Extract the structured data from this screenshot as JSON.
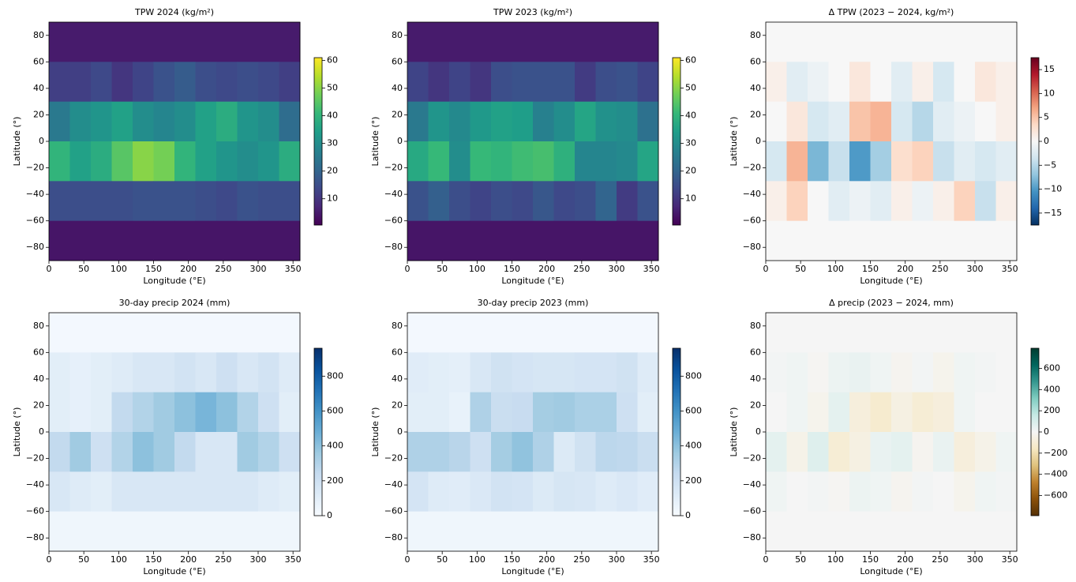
{
  "chart_data": [
    {
      "type": "heatmap",
      "title": "TPW 2024 (kg/m²)",
      "xlabel": "Longitude (°E)",
      "ylabel": "Latitude (°)",
      "xlim": [
        0,
        360
      ],
      "ylim": [
        -90,
        90
      ],
      "xticks": [
        0,
        50,
        100,
        150,
        200,
        250,
        300,
        350
      ],
      "yticks": [
        {
          "value": -80,
          "label": "−80"
        },
        {
          "value": -60,
          "label": "−60"
        },
        {
          "value": -40,
          "label": "−40"
        },
        {
          "value": -20,
          "label": "−20"
        },
        0,
        20,
        40,
        60,
        80
      ],
      "clim": [
        0.5,
        61
      ],
      "cticks": [
        10,
        20,
        30,
        40,
        50,
        60
      ],
      "colors": [
        "#440154",
        "#482878",
        "#3e4989",
        "#31688e",
        "#26828e",
        "#1f9e89",
        "#35b779",
        "#6ece58",
        "#b5de2b",
        "#fde725"
      ],
      "x": [
        15,
        45,
        75,
        105,
        135,
        165,
        195,
        225,
        255,
        285,
        315,
        345
      ],
      "y": [
        75,
        45,
        15,
        -15,
        -45,
        -75
      ],
      "values": [
        [
          5,
          5,
          5,
          5,
          5,
          5,
          5,
          5,
          5,
          5,
          5,
          5
        ],
        [
          12,
          12,
          14,
          10,
          13,
          16,
          18,
          15,
          14,
          15,
          14,
          12
        ],
        [
          25,
          30,
          32,
          35,
          30,
          28,
          30,
          35,
          38,
          32,
          30,
          22
        ],
        [
          40,
          35,
          38,
          45,
          50,
          48,
          40,
          35,
          32,
          30,
          32,
          38
        ],
        [
          15,
          15,
          15,
          15,
          16,
          16,
          16,
          15,
          14,
          16,
          15,
          15
        ],
        [
          4,
          4,
          4,
          4,
          4,
          4,
          4,
          4,
          4,
          4,
          4,
          4
        ]
      ]
    },
    {
      "type": "heatmap",
      "title": "TPW 2023 (kg/m²)",
      "xlabel": "Longitude (°E)",
      "ylabel": "Latitude (°)",
      "xlim": [
        0,
        360
      ],
      "ylim": [
        -90,
        90
      ],
      "xticks": [
        0,
        50,
        100,
        150,
        200,
        250,
        300,
        350
      ],
      "yticks": [
        {
          "value": -80,
          "label": "−80"
        },
        {
          "value": -60,
          "label": "−60"
        },
        {
          "value": -40,
          "label": "−40"
        },
        {
          "value": -20,
          "label": "−20"
        },
        0,
        20,
        40,
        60,
        80
      ],
      "clim": [
        0.5,
        61
      ],
      "cticks": [
        10,
        20,
        30,
        40,
        50,
        60
      ],
      "colors": [
        "#440154",
        "#482878",
        "#3e4989",
        "#31688e",
        "#26828e",
        "#1f9e89",
        "#35b779",
        "#6ece58",
        "#b5de2b",
        "#fde725"
      ],
      "x": [
        15,
        45,
        75,
        105,
        135,
        165,
        195,
        225,
        255,
        285,
        315,
        345
      ],
      "y": [
        75,
        45,
        15,
        -15,
        -45,
        -75
      ],
      "values": [
        [
          5,
          5,
          5,
          5,
          5,
          5,
          5,
          5,
          5,
          5,
          5,
          5
        ],
        [
          13,
          10,
          13,
          10,
          15,
          16,
          16,
          16,
          11,
          15,
          16,
          13
        ],
        [
          25,
          32,
          29,
          33,
          35,
          34,
          27,
          30,
          36,
          31,
          30,
          23
        ],
        [
          37,
          41,
          30,
          41,
          40,
          42,
          43,
          39,
          28,
          28,
          29,
          36
        ],
        [
          16,
          19,
          15,
          13,
          15,
          14,
          17,
          14,
          15,
          20,
          11,
          16
        ],
        [
          4,
          4,
          4,
          4,
          4,
          4,
          4,
          4,
          4,
          4,
          4,
          4
        ]
      ]
    },
    {
      "type": "heatmap",
      "title": "Δ TPW (2023 − 2024, kg/m²)",
      "xlabel": "Longitude (°E)",
      "ylabel": "Latitude (°)",
      "xlim": [
        0,
        360
      ],
      "ylim": [
        -90,
        90
      ],
      "xticks": [
        0,
        50,
        100,
        150,
        200,
        250,
        300,
        350
      ],
      "yticks": [
        {
          "value": -80,
          "label": "−80"
        },
        {
          "value": -60,
          "label": "−60"
        },
        {
          "value": -40,
          "label": "−40"
        },
        {
          "value": -20,
          "label": "−20"
        },
        0,
        20,
        40,
        60,
        80
      ],
      "clim": [
        -17.5,
        17.5
      ],
      "cticks": [
        {
          "value": -15,
          "label": "−15"
        },
        {
          "value": -10,
          "label": "−10"
        },
        {
          "value": -5,
          "label": "−5"
        },
        0,
        5,
        10,
        15
      ],
      "colors": [
        "#053061",
        "#2166ac",
        "#4393c3",
        "#92c5de",
        "#d1e5f0",
        "#f7f7f7",
        "#fddbc7",
        "#f4a582",
        "#d6604d",
        "#b2182b",
        "#67001f"
      ],
      "x": [
        15,
        45,
        75,
        105,
        135,
        165,
        195,
        225,
        255,
        285,
        315,
        345
      ],
      "y": [
        75,
        45,
        15,
        -15,
        -45,
        -75
      ],
      "values": [
        [
          0,
          0,
          0,
          0,
          0,
          0,
          0,
          0,
          0,
          0,
          0,
          0
        ],
        [
          1,
          -2,
          -1,
          0,
          2,
          0,
          -2,
          1,
          -3,
          0,
          2,
          1
        ],
        [
          0,
          2,
          -3,
          -2,
          5,
          6,
          -3,
          -5,
          -2,
          -1,
          0,
          1
        ],
        [
          -3,
          6,
          -8,
          -4,
          -10,
          -6,
          3,
          4,
          -4,
          -2,
          -3,
          -2
        ],
        [
          1,
          4,
          0,
          -2,
          -1,
          -2,
          1,
          -1,
          1,
          4,
          -4,
          1
        ],
        [
          0,
          0,
          0,
          0,
          0,
          0,
          0,
          0,
          0,
          0,
          0,
          0
        ]
      ]
    },
    {
      "type": "heatmap",
      "title": "30-day precip 2024 (mm)",
      "xlabel": "Longitude (°E)",
      "ylabel": "Latitude (°)",
      "xlim": [
        0,
        360
      ],
      "ylim": [
        -90,
        90
      ],
      "xticks": [
        0,
        50,
        100,
        150,
        200,
        250,
        300,
        350
      ],
      "yticks": [
        {
          "value": -80,
          "label": "−80"
        },
        {
          "value": -60,
          "label": "−60"
        },
        {
          "value": -40,
          "label": "−40"
        },
        {
          "value": -20,
          "label": "−20"
        },
        0,
        20,
        40,
        60,
        80
      ],
      "clim": [
        0,
        960
      ],
      "cticks": [
        0,
        200,
        400,
        600,
        800
      ],
      "colors": [
        "#f7fbff",
        "#deebf7",
        "#c6dbef",
        "#9ecae1",
        "#6baed6",
        "#4292c6",
        "#2171b5",
        "#08519c",
        "#08306b"
      ],
      "x": [
        15,
        45,
        75,
        105,
        135,
        165,
        195,
        225,
        255,
        285,
        315,
        345
      ],
      "y": [
        75,
        45,
        15,
        -15,
        -45,
        -75
      ],
      "values": [
        [
          20,
          20,
          20,
          20,
          20,
          20,
          20,
          20,
          20,
          20,
          20,
          20
        ],
        [
          100,
          80,
          100,
          120,
          150,
          150,
          180,
          150,
          200,
          150,
          180,
          120
        ],
        [
          100,
          80,
          100,
          250,
          300,
          350,
          400,
          450,
          400,
          300,
          200,
          100
        ],
        [
          250,
          350,
          200,
          300,
          400,
          350,
          250,
          150,
          150,
          350,
          300,
          200
        ],
        [
          150,
          120,
          100,
          150,
          150,
          150,
          150,
          150,
          150,
          150,
          120,
          100
        ],
        [
          40,
          40,
          40,
          40,
          40,
          40,
          40,
          40,
          40,
          40,
          40,
          40
        ]
      ]
    },
    {
      "type": "heatmap",
      "title": "30-day precip 2023 (mm)",
      "xlabel": "Longitude (°E)",
      "ylabel": "Latitude (°)",
      "xlim": [
        0,
        360
      ],
      "ylim": [
        -90,
        90
      ],
      "xticks": [
        0,
        50,
        100,
        150,
        200,
        250,
        300,
        350
      ],
      "yticks": [
        {
          "value": -80,
          "label": "−80"
        },
        {
          "value": -60,
          "label": "−60"
        },
        {
          "value": -40,
          "label": "−40"
        },
        {
          "value": -20,
          "label": "−20"
        },
        0,
        20,
        40,
        60,
        80
      ],
      "clim": [
        0,
        960
      ],
      "cticks": [
        0,
        200,
        400,
        600,
        800
      ],
      "colors": [
        "#f7fbff",
        "#deebf7",
        "#c6dbef",
        "#9ecae1",
        "#6baed6",
        "#4292c6",
        "#2171b5",
        "#08519c",
        "#08306b"
      ],
      "x": [
        15,
        45,
        75,
        105,
        135,
        165,
        195,
        225,
        255,
        285,
        315,
        345
      ],
      "y": [
        75,
        45,
        15,
        -15,
        -45,
        -75
      ],
      "values": [
        [
          20,
          20,
          20,
          20,
          20,
          20,
          20,
          20,
          20,
          20,
          20,
          20
        ],
        [
          110,
          100,
          90,
          150,
          190,
          170,
          160,
          160,
          170,
          170,
          190,
          120
        ],
        [
          100,
          100,
          70,
          310,
          220,
          230,
          340,
          350,
          320,
          320,
          200,
          100
        ],
        [
          310,
          310,
          280,
          200,
          340,
          390,
          310,
          130,
          190,
          270,
          260,
          220
        ],
        [
          170,
          120,
          110,
          140,
          180,
          170,
          130,
          160,
          150,
          120,
          140,
          110
        ],
        [
          40,
          40,
          40,
          40,
          40,
          40,
          40,
          40,
          40,
          40,
          40,
          40
        ]
      ]
    },
    {
      "type": "heatmap",
      "title": "Δ precip (2023 − 2024, mm)",
      "xlabel": "Longitude (°E)",
      "ylabel": "Latitude (°)",
      "xlim": [
        0,
        360
      ],
      "ylim": [
        -90,
        90
      ],
      "xticks": [
        0,
        50,
        100,
        150,
        200,
        250,
        300,
        350
      ],
      "yticks": [
        {
          "value": -80,
          "label": "−80"
        },
        {
          "value": -60,
          "label": "−60"
        },
        {
          "value": -40,
          "label": "−40"
        },
        {
          "value": -20,
          "label": "−20"
        },
        0,
        20,
        40,
        60,
        80
      ],
      "clim": [
        -790,
        790
      ],
      "cticks": [
        {
          "value": -600,
          "label": "−600"
        },
        {
          "value": -400,
          "label": "−400"
        },
        {
          "value": -200,
          "label": "−200"
        },
        0,
        200,
        400,
        600
      ],
      "colors": [
        "#543005",
        "#8c510a",
        "#bf812d",
        "#dfc27d",
        "#f6e8c3",
        "#f5f5f5",
        "#c7eae5",
        "#80cdc1",
        "#35978f",
        "#01665e",
        "#003c30"
      ],
      "x": [
        15,
        45,
        75,
        105,
        135,
        165,
        195,
        225,
        255,
        285,
        315,
        345
      ],
      "y": [
        75,
        45,
        15,
        -15,
        -45,
        -75
      ],
      "values": [
        [
          0,
          0,
          0,
          0,
          0,
          0,
          0,
          0,
          0,
          0,
          0,
          0
        ],
        [
          10,
          20,
          -10,
          30,
          40,
          20,
          -20,
          10,
          -30,
          20,
          10,
          0
        ],
        [
          0,
          20,
          -30,
          60,
          -80,
          -120,
          -60,
          -100,
          -80,
          20,
          0,
          0
        ],
        [
          60,
          -40,
          80,
          -100,
          -60,
          40,
          60,
          -20,
          40,
          -80,
          -40,
          20
        ],
        [
          20,
          0,
          10,
          -10,
          30,
          20,
          -20,
          10,
          0,
          -30,
          20,
          10
        ],
        [
          0,
          0,
          0,
          0,
          0,
          0,
          0,
          0,
          0,
          0,
          0,
          0
        ]
      ]
    }
  ]
}
